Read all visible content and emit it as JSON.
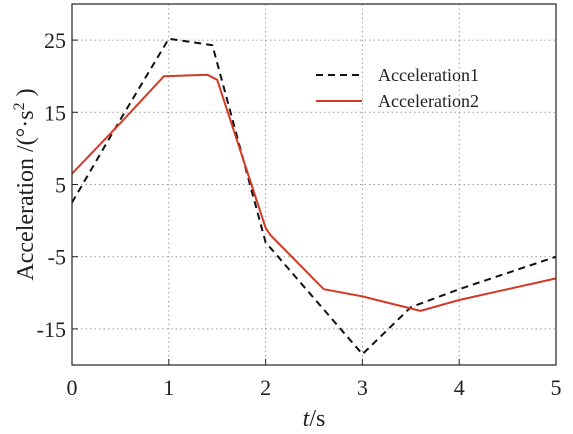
{
  "chart_data": {
    "type": "line",
    "title": "",
    "xlabel_italic": "t",
    "xlabel_unit": "/s",
    "ylabel_main": "Acceleration /(°·s",
    "ylabel_sup": "2",
    "ylabel_end": " )",
    "xlim": [
      0,
      5
    ],
    "ylim": [
      -20,
      30
    ],
    "xticks": [
      0,
      1,
      2,
      3,
      4,
      5
    ],
    "yticks": [
      25,
      15,
      5,
      -5,
      -15
    ],
    "grid": true,
    "legend_placement": "top-right",
    "series": [
      {
        "name": "Acceleration1",
        "color": "#111111",
        "dashed": true,
        "points": [
          [
            0,
            2.5
          ],
          [
            0.5,
            14
          ],
          [
            1.0,
            25.2
          ],
          [
            1.45,
            24.3
          ],
          [
            2.0,
            -3
          ],
          [
            3.0,
            -18.5
          ],
          [
            3.5,
            -12
          ],
          [
            4.0,
            -9.5
          ],
          [
            5.0,
            -5
          ]
        ]
      },
      {
        "name": "Acceleration2",
        "color": "#d23a25",
        "dashed": false,
        "points": [
          [
            0,
            6.5
          ],
          [
            0.5,
            13.5
          ],
          [
            0.95,
            20
          ],
          [
            1.4,
            20.2
          ],
          [
            1.5,
            19.5
          ],
          [
            2.0,
            -1
          ],
          [
            2.05,
            -2
          ],
          [
            2.6,
            -9.5
          ],
          [
            3.0,
            -10.5
          ],
          [
            3.6,
            -12.5
          ],
          [
            4.0,
            -11
          ],
          [
            5.0,
            -8
          ]
        ]
      }
    ]
  }
}
